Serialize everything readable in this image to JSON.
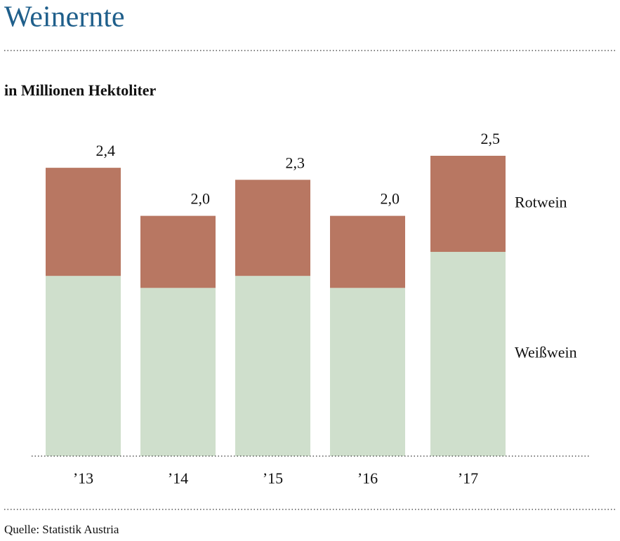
{
  "chart_data": {
    "type": "stacked-bar",
    "title": "Weinernte",
    "subtitle": "in Millionen Hektoliter",
    "source": "Quelle: Statistik Austria",
    "categories": [
      "’13",
      "’14",
      "’15",
      "’16",
      "’17"
    ],
    "series": [
      {
        "name": "Weißwein",
        "color": "#cfdfcc",
        "values": [
          1.5,
          1.4,
          1.5,
          1.4,
          1.7
        ]
      },
      {
        "name": "Rotwein",
        "color": "#b87762",
        "values": [
          0.9,
          0.6,
          0.8,
          0.6,
          0.8
        ]
      }
    ],
    "totals": [
      2.4,
      2.0,
      2.3,
      2.0,
      2.5
    ],
    "total_labels": [
      "2,4",
      "2,0",
      "2,3",
      "2,0",
      "2,5"
    ]
  }
}
